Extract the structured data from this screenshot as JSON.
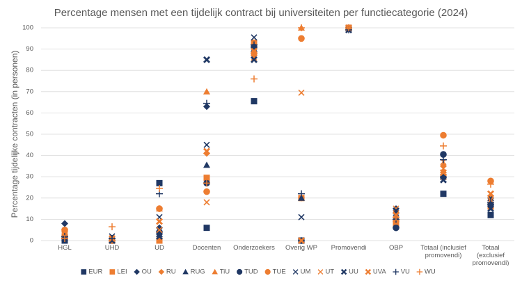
{
  "chart_data": {
    "type": "scatter",
    "title": "Percentage mensen met een tijdelijk contract bij universiteiten per functiecategorie (2024)",
    "y_label": "Percentage tijdelijke contracten (in personen)",
    "categories": [
      "HGL",
      "UHD",
      "UD",
      "Docenten",
      "Onderzoekers",
      "Overig WP",
      "Promovendi",
      "OBP",
      "Totaal (inclusief promovendi)",
      "Totaal (exclusief promovendi)"
    ],
    "ylim": [
      0,
      100
    ],
    "yticks": [
      0,
      10,
      20,
      30,
      40,
      50,
      60,
      70,
      80,
      90,
      100
    ],
    "grid": true,
    "legend": "bottom",
    "series": [
      {
        "name": "EUR",
        "color": "#203864",
        "marker": "square",
        "values": [
          0,
          0,
          27,
          6,
          65.5,
          0,
          100,
          8,
          22,
          12
        ]
      },
      {
        "name": "LEI",
        "color": "#ed7d31",
        "marker": "square",
        "values": [
          2,
          0,
          0,
          29.5,
          93,
          20,
          100,
          8,
          30,
          16
        ]
      },
      {
        "name": "OU",
        "color": "#203864",
        "marker": "diamond",
        "values": [
          8,
          1,
          6,
          63,
          88,
          0,
          100,
          15,
          30,
          20
        ]
      },
      {
        "name": "RU",
        "color": "#ed7d31",
        "marker": "diamond",
        "values": [
          5,
          0,
          15,
          41,
          87,
          20,
          100,
          13,
          35,
          21
        ]
      },
      {
        "name": "RUG",
        "color": "#203864",
        "marker": "triangle",
        "values": [
          2,
          1,
          3,
          35.5,
          90,
          20,
          100,
          11,
          31,
          18
        ]
      },
      {
        "name": "TiU",
        "color": "#ed7d31",
        "marker": "triangle",
        "values": [
          3,
          0,
          15,
          70,
          92,
          100,
          100,
          14,
          33,
          20
        ]
      },
      {
        "name": "TUD",
        "color": "#203864",
        "marker": "circle",
        "values": [
          1,
          0,
          4,
          27,
          91,
          0,
          100,
          6,
          40.5,
          17
        ]
      },
      {
        "name": "TUE",
        "color": "#ed7d31",
        "marker": "circle",
        "values": [
          5,
          0,
          15,
          23,
          88,
          95,
          100,
          9,
          49.5,
          28
        ]
      },
      {
        "name": "UM",
        "color": "#203864",
        "marker": "x",
        "values": [
          3,
          2,
          11,
          45,
          95.5,
          11,
          100,
          13,
          30,
          20
        ]
      },
      {
        "name": "UT",
        "color": "#ed7d31",
        "marker": "x",
        "values": [
          2,
          1,
          5,
          18,
          86,
          69.5,
          100,
          15,
          37,
          19
        ]
      },
      {
        "name": "UU",
        "color": "#203864",
        "marker": "xbold",
        "values": [
          1,
          0,
          2,
          85,
          85,
          0,
          99,
          14,
          28.5,
          15
        ]
      },
      {
        "name": "UVA",
        "color": "#ed7d31",
        "marker": "xbold",
        "values": [
          3,
          1,
          9,
          42,
          89,
          0,
          100,
          12,
          32,
          22
        ]
      },
      {
        "name": "VU",
        "color": "#203864",
        "marker": "plus",
        "values": [
          2,
          1,
          22,
          64.5,
          92,
          22,
          99,
          10,
          38,
          18
        ]
      },
      {
        "name": "WU",
        "color": "#ed7d31",
        "marker": "plus",
        "values": [
          1,
          6.5,
          24.5,
          27,
          76,
          100,
          100,
          11,
          44.5,
          26.5
        ]
      }
    ]
  }
}
